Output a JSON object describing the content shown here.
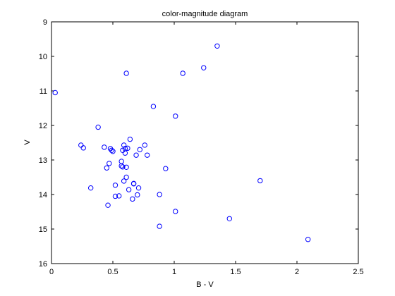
{
  "chart_data": {
    "type": "scatter",
    "title": "color-magnitude diagram",
    "xlabel": "B - V",
    "ylabel": "V",
    "xlim": [
      0,
      2.5
    ],
    "ylim": [
      9,
      16
    ],
    "y_reversed": true,
    "grid": false,
    "xticks": [
      "0",
      "0.5",
      "1",
      "1.5",
      "2",
      "2.5"
    ],
    "yticks": [
      "9",
      "10",
      "11",
      "12",
      "13",
      "14",
      "15",
      "16"
    ],
    "marker": "circle-open",
    "marker_color": "#0000ff",
    "series": [
      {
        "points": [
          [
            0.03,
            11.05
          ],
          [
            0.24,
            12.57
          ],
          [
            0.26,
            12.65
          ],
          [
            0.32,
            13.81
          ],
          [
            0.38,
            12.05
          ],
          [
            0.43,
            12.63
          ],
          [
            0.45,
            13.23
          ],
          [
            0.46,
            14.31
          ],
          [
            0.47,
            13.1
          ],
          [
            0.48,
            12.67
          ],
          [
            0.49,
            12.72
          ],
          [
            0.5,
            12.75
          ],
          [
            0.52,
            13.73
          ],
          [
            0.52,
            14.05
          ],
          [
            0.55,
            14.04
          ],
          [
            0.57,
            13.04
          ],
          [
            0.57,
            13.17
          ],
          [
            0.58,
            12.72
          ],
          [
            0.58,
            13.2
          ],
          [
            0.59,
            12.57
          ],
          [
            0.59,
            13.61
          ],
          [
            0.6,
            12.8
          ],
          [
            0.6,
            12.67
          ],
          [
            0.61,
            10.49
          ],
          [
            0.61,
            13.21
          ],
          [
            0.61,
            13.5
          ],
          [
            0.62,
            12.66
          ],
          [
            0.63,
            13.86
          ],
          [
            0.64,
            12.4
          ],
          [
            0.66,
            14.13
          ],
          [
            0.67,
            13.68
          ],
          [
            0.67,
            13.69
          ],
          [
            0.69,
            12.86
          ],
          [
            0.7,
            14.01
          ],
          [
            0.71,
            13.81
          ],
          [
            0.72,
            12.7
          ],
          [
            0.76,
            12.57
          ],
          [
            0.78,
            12.86
          ],
          [
            0.83,
            11.45
          ],
          [
            0.88,
            14.0
          ],
          [
            0.88,
            14.92
          ],
          [
            0.93,
            13.25
          ],
          [
            1.01,
            11.73
          ],
          [
            1.01,
            14.49
          ],
          [
            1.07,
            10.49
          ],
          [
            1.24,
            10.33
          ],
          [
            1.35,
            9.7
          ],
          [
            1.45,
            14.7
          ],
          [
            1.7,
            13.6
          ],
          [
            2.09,
            15.3
          ]
        ]
      }
    ]
  }
}
